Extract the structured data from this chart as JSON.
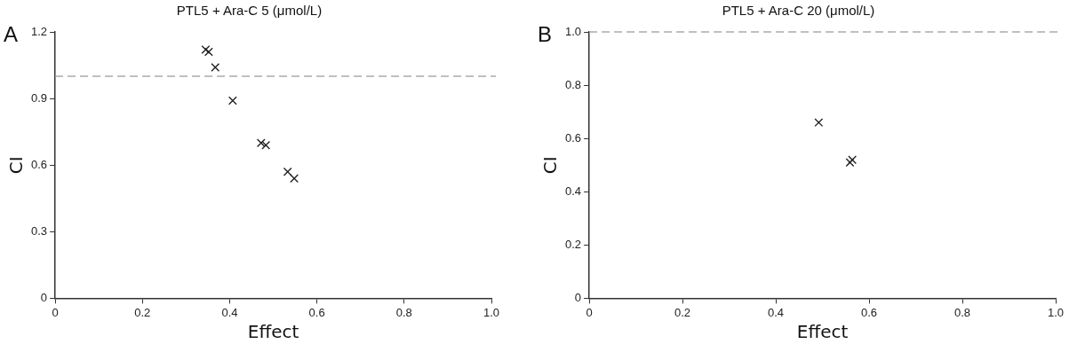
{
  "chart_data": [
    {
      "type": "scatter",
      "title": "PTL5 + Ara-C 5 (μmol/L)",
      "xlabel": "Effect",
      "ylabel": "CI",
      "annotations": [
        "A"
      ],
      "x": [
        0.345,
        0.352,
        0.367,
        0.407,
        0.472,
        0.483,
        0.533,
        0.548
      ],
      "series": [
        {
          "color": "#222222",
          "values": [
            1.12,
            1.11,
            1.04,
            0.89,
            0.7,
            0.69,
            0.57,
            0.54
          ]
        }
      ],
      "xlim": [
        0,
        1
      ],
      "xticks": [
        0,
        0.2,
        0.4,
        0.6,
        0.8,
        {
          "value": 1,
          "label": "1.0"
        }
      ],
      "ylim": [
        0,
        1.2
      ],
      "yticks": [
        0,
        0.3,
        0.6,
        0.9,
        1.2
      ],
      "ref_lines": [
        {
          "axis": "y",
          "value": 1,
          "color": "#aaaaaa",
          "line_style": "dashed"
        }
      ],
      "marker": "cross",
      "grid": false,
      "legend": false
    },
    {
      "type": "scatter",
      "title": "PTL5 + Ara-C 20 (μmol/L)",
      "xlabel": "Effect",
      "ylabel": "CI",
      "annotations": [
        "B"
      ],
      "x": [
        0.492,
        0.559,
        0.564
      ],
      "series": [
        {
          "color": "#222222",
          "values": [
            0.66,
            0.51,
            0.52
          ]
        }
      ],
      "xlim": [
        0,
        1
      ],
      "xticks": [
        0,
        0.2,
        0.4,
        0.6,
        0.8,
        {
          "value": 1,
          "label": "1.0"
        }
      ],
      "ylim": [
        0,
        1
      ],
      "yticks": [
        0,
        0.2,
        0.4,
        0.6,
        0.8,
        {
          "value": 1,
          "label": "1.0"
        }
      ],
      "ref_lines": [
        {
          "axis": "y",
          "value": 1,
          "color": "#aaaaaa",
          "line_style": "dashed"
        }
      ],
      "marker": "cross",
      "grid": false,
      "legend": false
    }
  ]
}
